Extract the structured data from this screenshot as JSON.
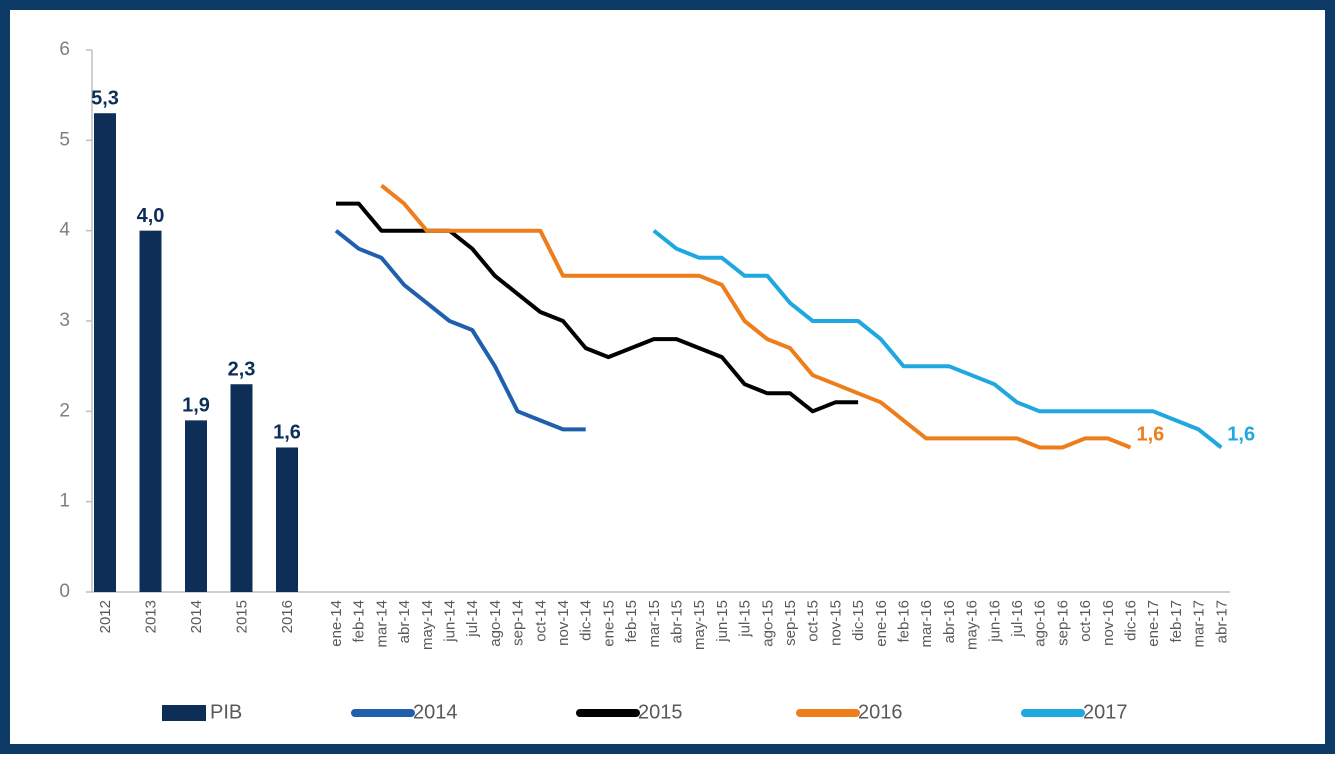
{
  "chart_data": {
    "type": "combo",
    "ylim": [
      0,
      6
    ],
    "yticks": [
      0,
      1,
      2,
      3,
      4,
      5,
      6
    ],
    "bars": {
      "name": "PIB",
      "color": "#0d2f57",
      "categories": [
        "2012",
        "2013",
        "2014",
        "2015",
        "2016"
      ],
      "values": [
        5.3,
        4.0,
        1.9,
        2.3,
        1.6
      ],
      "value_labels": [
        "5,3",
        "4,0",
        "1,9",
        "2,3",
        "1,6"
      ]
    },
    "categories": [
      "ene-14",
      "feb-14",
      "mar-14",
      "abr-14",
      "may-14",
      "jun-14",
      "jul-14",
      "ago-14",
      "sep-14",
      "oct-14",
      "nov-14",
      "dic-14",
      "ene-15",
      "feb-15",
      "mar-15",
      "abr-15",
      "may-15",
      "jun-15",
      "jul-15",
      "ago-15",
      "sep-15",
      "oct-15",
      "nov-15",
      "dic-15",
      "ene-16",
      "feb-16",
      "mar-16",
      "abr-16",
      "may-16",
      "jun-16",
      "jul-16",
      "ago-16",
      "sep-16",
      "oct-16",
      "nov-16",
      "dic-16",
      "ene-17",
      "feb-17",
      "mar-17",
      "abr-17"
    ],
    "series": [
      {
        "name": "2014",
        "color": "#1f5fad",
        "values": [
          4.0,
          3.8,
          3.7,
          3.4,
          3.2,
          3.0,
          2.9,
          2.5,
          2.0,
          1.9,
          1.8,
          1.8,
          null,
          null,
          null,
          null,
          null,
          null,
          null,
          null,
          null,
          null,
          null,
          null,
          null,
          null,
          null,
          null,
          null,
          null,
          null,
          null,
          null,
          null,
          null,
          null,
          null,
          null,
          null,
          null
        ]
      },
      {
        "name": "2015",
        "color": "#000000",
        "values": [
          4.3,
          4.3,
          4.0,
          4.0,
          4.0,
          4.0,
          3.8,
          3.5,
          3.3,
          3.1,
          3.0,
          2.7,
          2.6,
          2.7,
          2.8,
          2.8,
          2.7,
          2.6,
          2.3,
          2.2,
          2.2,
          2.0,
          2.1,
          2.1,
          null,
          null,
          null,
          null,
          null,
          null,
          null,
          null,
          null,
          null,
          null,
          null,
          null,
          null,
          null,
          null
        ]
      },
      {
        "name": "2016",
        "color": "#ee7d1b",
        "values": [
          null,
          null,
          4.5,
          4.3,
          4.0,
          4.0,
          4.0,
          4.0,
          4.0,
          4.0,
          3.5,
          3.5,
          3.5,
          3.5,
          3.5,
          3.5,
          3.5,
          3.4,
          3.0,
          2.8,
          2.7,
          2.4,
          2.3,
          2.2,
          2.1,
          1.9,
          1.7,
          1.7,
          1.7,
          1.7,
          1.7,
          1.6,
          1.6,
          1.7,
          1.7,
          1.6,
          null,
          null,
          null,
          null
        ],
        "value_labels": [
          null,
          null,
          null,
          null,
          null,
          null,
          null,
          null,
          null,
          null,
          null,
          null,
          null,
          null,
          null,
          null,
          null,
          null,
          null,
          null,
          null,
          null,
          null,
          null,
          null,
          null,
          null,
          null,
          null,
          null,
          null,
          null,
          null,
          null,
          null,
          "1,6",
          null,
          null,
          null,
          null
        ]
      },
      {
        "name": "2017",
        "color": "#1fa8e0",
        "values": [
          null,
          null,
          null,
          null,
          null,
          null,
          null,
          null,
          null,
          null,
          null,
          null,
          null,
          null,
          4.0,
          3.8,
          3.7,
          3.7,
          3.5,
          3.5,
          3.2,
          3.0,
          3.0,
          3.0,
          2.8,
          2.5,
          2.5,
          2.5,
          2.4,
          2.3,
          2.1,
          2.0,
          2.0,
          2.0,
          2.0,
          2.0,
          2.0,
          1.9,
          1.8,
          1.6
        ],
        "value_labels": [
          null,
          null,
          null,
          null,
          null,
          null,
          null,
          null,
          null,
          null,
          null,
          null,
          null,
          null,
          null,
          null,
          null,
          null,
          null,
          null,
          null,
          null,
          null,
          null,
          null,
          null,
          null,
          null,
          null,
          null,
          null,
          null,
          null,
          null,
          null,
          null,
          null,
          null,
          null,
          "1,6"
        ]
      }
    ]
  }
}
